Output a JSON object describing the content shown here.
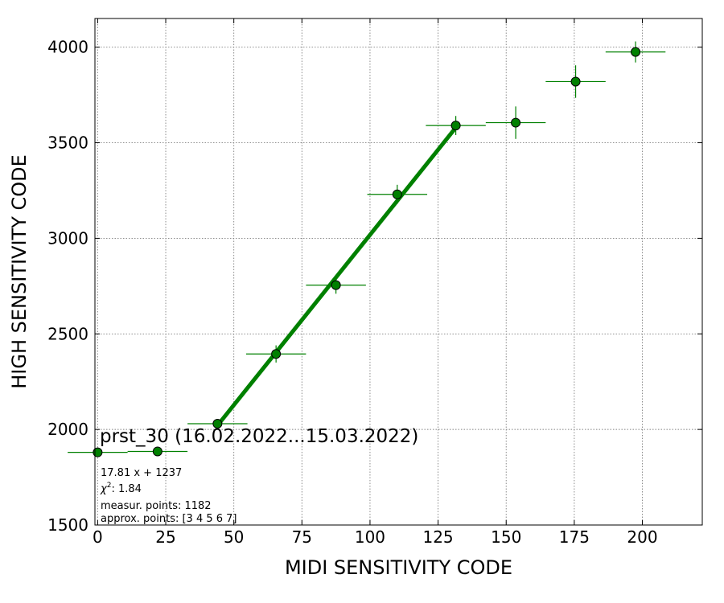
{
  "chart_data": {
    "type": "scatter",
    "title": "prst_30 (16.02.2022...15.03.2022)",
    "xlabel": "MIDI SENSITIVITY CODE",
    "ylabel": "HIGH SENSITIVITY CODE",
    "xlim": [
      -1,
      222
    ],
    "ylim": [
      1500,
      4150
    ],
    "xticks": [
      0,
      25,
      50,
      75,
      100,
      125,
      150,
      175,
      200
    ],
    "yticks": [
      1500,
      2000,
      2500,
      3000,
      3500,
      4000
    ],
    "grid": true,
    "colors": {
      "marker": "#008000",
      "line": "#008000",
      "errorbar": "#008000",
      "marker_edge": "#000000"
    },
    "series": [
      {
        "x": [
          0,
          22,
          44,
          65.5,
          87.5,
          110,
          131.5,
          153.5,
          175.5,
          197.5
        ],
        "y": [
          1880,
          1885,
          2030,
          2395,
          2755,
          3230,
          3590,
          3605,
          3820,
          3975
        ],
        "xerr": [
          11,
          11,
          11,
          11,
          11,
          11,
          11,
          11,
          11,
          11
        ],
        "yerr": [
          0,
          5,
          5,
          45,
          45,
          50,
          50,
          85,
          85,
          55
        ]
      }
    ],
    "fit_line": {
      "slope": 17.81,
      "intercept": 1237,
      "x_range": [
        44,
        131.5
      ]
    },
    "annotations": [
      "17.81 x + 1237",
      "χ²: 1.84",
      "measur. points: 1182",
      "approx. points: [3 4 5 6 7]"
    ]
  }
}
